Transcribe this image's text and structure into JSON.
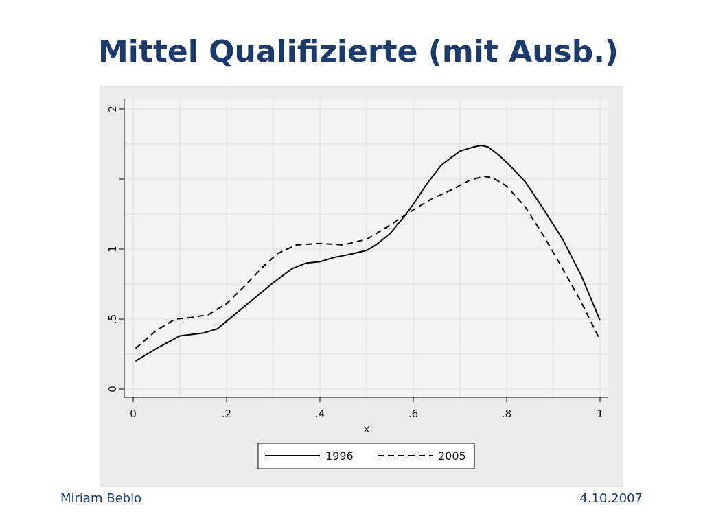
{
  "slide": {
    "title": "Mittel Qualifizierte (mit Ausb.)",
    "footer_left": "Miriam Beblo",
    "footer_right": "4.10.2007"
  },
  "colors": {
    "title": "#1b3a6b",
    "panel_bg": "#eaeaea",
    "plot_bg": "#f3f3f3",
    "grid": "#dcdcdc",
    "line": "#000000"
  },
  "chart_data": {
    "type": "line",
    "title": "",
    "xlabel": "x",
    "ylabel": "",
    "xlim": [
      0,
      1
    ],
    "ylim": [
      0,
      2
    ],
    "x_ticks": [
      {
        "value": 0,
        "label": "0"
      },
      {
        "value": 0.2,
        "label": ".2"
      },
      {
        "value": 0.4,
        "label": ".4"
      },
      {
        "value": 0.6,
        "label": ".6"
      },
      {
        "value": 0.8,
        "label": ".8"
      },
      {
        "value": 1,
        "label": "1"
      }
    ],
    "y_ticks": [
      {
        "value": 0,
        "label": "0"
      },
      {
        "value": 0.5,
        "label": ".5"
      },
      {
        "value": 1,
        "label": "1"
      },
      {
        "value": 1.5,
        "label": ""
      },
      {
        "value": 2,
        "label": "2"
      }
    ],
    "grid": true,
    "legend_position": "bottom",
    "series": [
      {
        "name": "1996",
        "style": "solid",
        "x": [
          0.005,
          0.05,
          0.1,
          0.15,
          0.18,
          0.22,
          0.26,
          0.3,
          0.34,
          0.37,
          0.4,
          0.43,
          0.46,
          0.5,
          0.52,
          0.55,
          0.58,
          0.6,
          0.63,
          0.66,
          0.7,
          0.73,
          0.745,
          0.76,
          0.78,
          0.8,
          0.84,
          0.88,
          0.92,
          0.96,
          1.0
        ],
        "y": [
          0.2,
          0.29,
          0.38,
          0.4,
          0.43,
          0.54,
          0.65,
          0.76,
          0.86,
          0.9,
          0.91,
          0.94,
          0.96,
          0.99,
          1.03,
          1.11,
          1.23,
          1.32,
          1.47,
          1.6,
          1.7,
          1.73,
          1.74,
          1.73,
          1.68,
          1.62,
          1.48,
          1.28,
          1.07,
          0.81,
          0.49
        ]
      },
      {
        "name": "2005",
        "style": "dashed",
        "x": [
          0.005,
          0.05,
          0.09,
          0.12,
          0.16,
          0.2,
          0.24,
          0.28,
          0.31,
          0.35,
          0.4,
          0.45,
          0.5,
          0.55,
          0.6,
          0.64,
          0.68,
          0.72,
          0.75,
          0.77,
          0.8,
          0.84,
          0.88,
          0.92,
          0.96,
          1.0
        ],
        "y": [
          0.29,
          0.42,
          0.5,
          0.51,
          0.53,
          0.61,
          0.74,
          0.88,
          0.97,
          1.03,
          1.04,
          1.03,
          1.07,
          1.17,
          1.28,
          1.36,
          1.42,
          1.49,
          1.52,
          1.51,
          1.45,
          1.3,
          1.09,
          0.86,
          0.62,
          0.35
        ]
      }
    ]
  }
}
